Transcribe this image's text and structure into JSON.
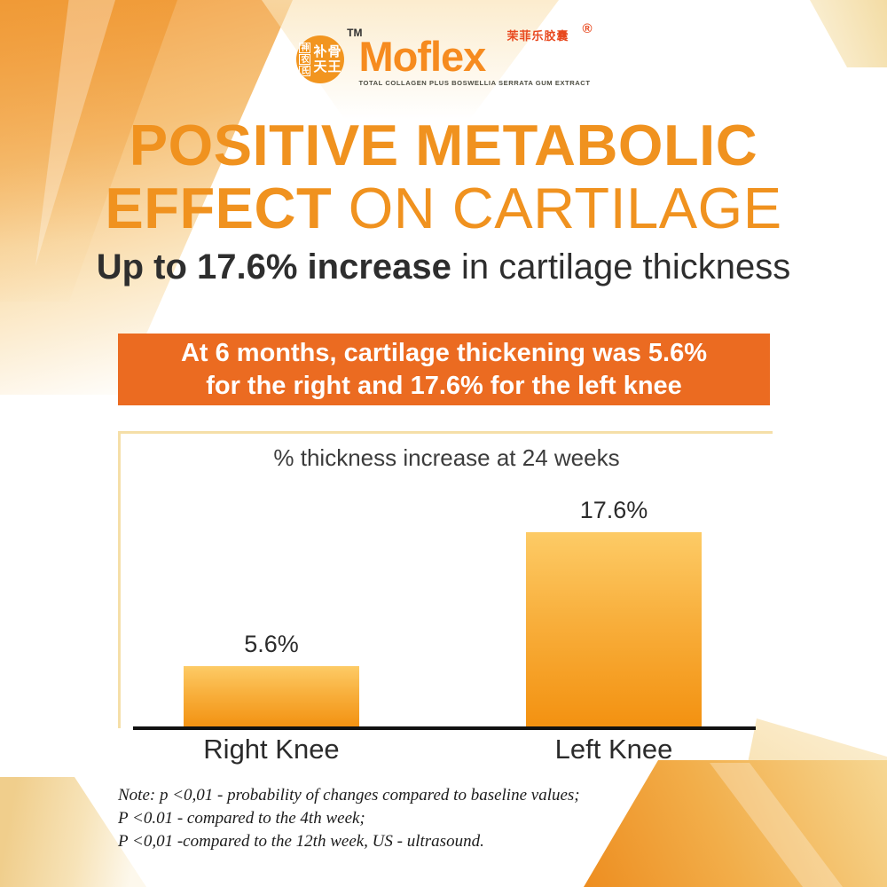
{
  "brand": {
    "seal": {
      "side_chars": [
        "神",
        "农",
        "氏"
      ],
      "main_top": "补骨",
      "main_bottom": "天王",
      "tm": "TM"
    },
    "wordmark": "Moflex",
    "wordmark_cn": "茉菲乐胶囊",
    "registered": "®",
    "tagline": "TOTAL COLLAGEN PLUS BOSWELLIA SERRATA GUM EXTRACT"
  },
  "headline": {
    "line1": "POSITIVE METABOLIC",
    "line2_bold": "EFFECT",
    "line2_regular": " ON CARTILAGE"
  },
  "subheadline": {
    "bold": "Up to 17.6% increase",
    "regular": " in cartilage thickness"
  },
  "banner": {
    "line1": "At 6 months, cartilage thickening was 5.6%",
    "line2": "for the right and 17.6% for the left knee"
  },
  "chart_data": {
    "type": "bar",
    "title": "% thickness increase at 24 weeks",
    "categories": [
      "Right Knee",
      "Left Knee"
    ],
    "values": [
      5.6,
      17.6
    ],
    "value_labels": [
      "5.6%",
      "17.6%"
    ],
    "xlabel": "",
    "ylabel": "",
    "ylim": [
      0,
      20
    ],
    "grid": false,
    "legend": false,
    "bar_color_gradient": [
      "#FDCB66",
      "#F39110"
    ]
  },
  "note": {
    "lines": [
      "Note: p <0,01 - probability of changes compared to baseline values;",
      "P <0.01 - compared to the 4th week;",
      "P <0,01 -compared to the 12th week, US - ultrasound."
    ]
  },
  "colors": {
    "headline_orange": "#F0921F",
    "banner_orange": "#EB6B21",
    "wordmark_orange": "#F68B1F",
    "seal_orange": "#F2951F",
    "chart_border": "#F5DFA8",
    "dark_text": "#2E2E2E"
  }
}
